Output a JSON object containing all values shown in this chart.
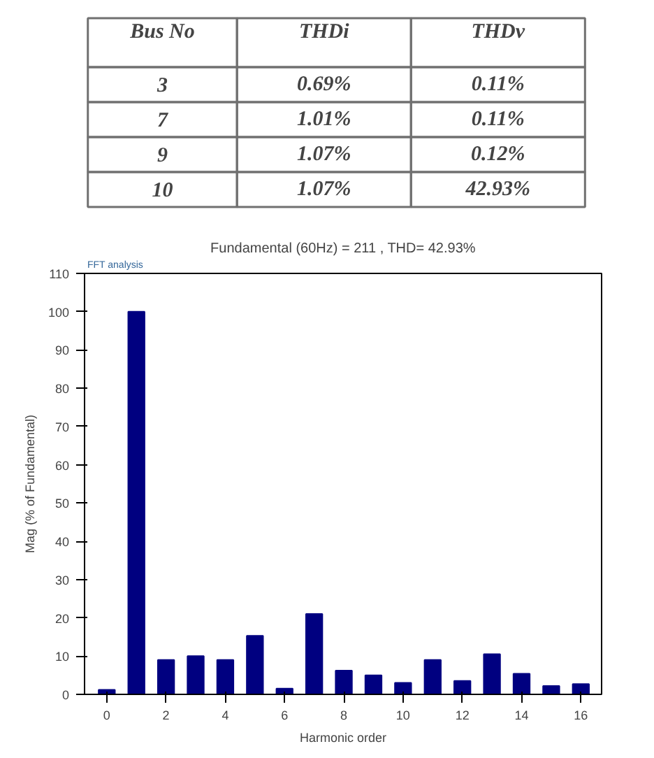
{
  "chart_data": [
    {
      "type": "other",
      "categories": [
        "Bus No",
        "THDi",
        "THDv"
      ],
      "annotations": [
        "3",
        "0.69%",
        "0.11%",
        "7",
        "1.01%",
        "0.11%",
        "9",
        "1.07%",
        "0.12%",
        "10",
        "1.07%",
        "42.93%"
      ]
    },
    {
      "type": "bar",
      "title": "Fundamental (60Hz) = 211 , THD= 42.93%",
      "xlabel": "Harmonic order",
      "ylabel": "Mag (% of Fundamental)",
      "annotations": [
        "FFT analysis"
      ],
      "x": [
        0,
        1,
        2,
        3,
        4,
        5,
        6,
        7,
        8,
        9,
        10,
        11,
        12,
        13,
        14,
        15,
        16
      ],
      "values": [
        1.2,
        100,
        9,
        10,
        9,
        15.3,
        1.5,
        21,
        6.2,
        5,
        3,
        9,
        3.5,
        10.5,
        5.4,
        2.2,
        2.7
      ],
      "color": "#000080",
      "xlim": [
        -0.75,
        16.7
      ],
      "xticks": [
        0,
        2,
        4,
        6,
        8,
        10,
        12,
        14,
        16
      ],
      "ylim": [
        0,
        110
      ],
      "yticks": [
        0,
        10,
        20,
        30,
        40,
        50,
        60,
        70,
        80,
        90,
        100,
        110
      ],
      "grid": false
    }
  ]
}
